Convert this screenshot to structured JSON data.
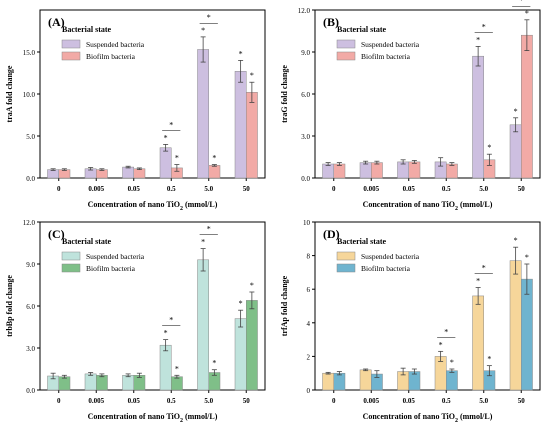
{
  "figure": {
    "x_axis_label": "Concentration of nano TiO",
    "x_axis_sub": "2",
    "x_axis_unit": " (mmol/L)"
  },
  "colors": {
    "suspended_A": "#cdbfe0",
    "biofilm_A": "#f2aaa6",
    "suspended_C": "#bfe3dc",
    "biofilm_C": "#7fbf88",
    "suspended_D": "#f6d69a",
    "biofilm_D": "#6fb4cf"
  },
  "chart_data": [
    {
      "type": "bar",
      "panel": "(A)",
      "ylabel": "traA fold change",
      "categories": [
        "0",
        "0.005",
        "0.05",
        "0.5",
        "5.0",
        "50"
      ],
      "ylim": [
        0,
        20
      ],
      "yticks": [
        "0.0",
        "5.0",
        "10.0",
        "15.0"
      ],
      "legend_title": "Bacterial state",
      "series": [
        {
          "name": "Suspended bacteria",
          "values": [
            1.0,
            1.1,
            1.3,
            3.6,
            15.3,
            12.7
          ],
          "errors": [
            0.1,
            0.15,
            0.1,
            0.4,
            1.5,
            1.3
          ],
          "color_key": "suspended_A"
        },
        {
          "name": "Biofilm bacteria",
          "values": [
            1.0,
            1.0,
            1.1,
            1.2,
            1.5,
            10.2
          ],
          "errors": [
            0.1,
            0.1,
            0.1,
            0.4,
            0.1,
            1.2
          ],
          "color_key": "biofilm_A"
        }
      ],
      "sig": [
        {
          "cat": 3,
          "stars": [
            "*",
            "*",
            "*"
          ],
          "line": "—"
        },
        {
          "cat": 4,
          "stars": [
            "*",
            "*",
            "*"
          ],
          "line": "—"
        },
        {
          "cat": 5,
          "stars": [
            "*",
            "*"
          ]
        }
      ]
    },
    {
      "type": "bar",
      "panel": "(B)",
      "ylabel": "traG fold change",
      "categories": [
        "0",
        "0.005",
        "0.05",
        "0.5",
        "5.0",
        "50"
      ],
      "ylim": [
        0,
        12
      ],
      "yticks": [
        "0.0",
        "3.0",
        "6.0",
        "9.0",
        "12.0"
      ],
      "legend_title": "Bacterial state",
      "series": [
        {
          "name": "Suspended bacteria",
          "values": [
            1.0,
            1.1,
            1.15,
            1.15,
            8.7,
            3.8
          ],
          "errors": [
            0.1,
            0.1,
            0.15,
            0.3,
            0.7,
            0.5
          ],
          "color_key": "suspended_A"
        },
        {
          "name": "Biofilm bacteria",
          "values": [
            1.0,
            1.1,
            1.15,
            1.0,
            1.3,
            10.2
          ],
          "errors": [
            0.1,
            0.1,
            0.1,
            0.1,
            0.4,
            1.1
          ],
          "color_key": "biofilm_A"
        }
      ],
      "sig": [
        {
          "cat": 4,
          "stars": [
            "*",
            "*",
            "*"
          ],
          "line": "—"
        },
        {
          "cat": 5,
          "stars": [
            "*",
            "*",
            "*"
          ],
          "line": "—"
        }
      ]
    },
    {
      "type": "bar",
      "panel": "(C)",
      "ylabel": "trbBp fold change",
      "categories": [
        "0",
        "0.005",
        "0.05",
        "0.5",
        "5.0",
        "50"
      ],
      "ylim": [
        0,
        12
      ],
      "yticks": [
        "0.0",
        "3.0",
        "6.0",
        "9.0",
        "12.0"
      ],
      "legend_title": "Bacterial state",
      "series": [
        {
          "name": "Suspended bacteria",
          "values": [
            1.0,
            1.15,
            1.05,
            3.2,
            9.3,
            5.1
          ],
          "errors": [
            0.2,
            0.1,
            0.1,
            0.4,
            0.8,
            0.6
          ],
          "color_key": "suspended_C"
        },
        {
          "name": "Biofilm bacteria",
          "values": [
            0.95,
            1.05,
            1.05,
            0.95,
            1.25,
            6.4
          ],
          "errors": [
            0.1,
            0.1,
            0.15,
            0.1,
            0.2,
            0.6
          ],
          "color_key": "biofilm_C"
        }
      ],
      "sig": [
        {
          "cat": 3,
          "stars": [
            "*",
            "*",
            "*"
          ],
          "line": "—"
        },
        {
          "cat": 4,
          "stars": [
            "*",
            "*",
            "*"
          ],
          "line": "—"
        },
        {
          "cat": 5,
          "stars": [
            "*",
            "*"
          ]
        }
      ]
    },
    {
      "type": "bar",
      "panel": "(D)",
      "ylabel": "trfAp fold change",
      "categories": [
        "0",
        "0.005",
        "0.05",
        "0.5",
        "5.0",
        "50"
      ],
      "ylim": [
        0,
        10
      ],
      "yticks": [
        "0",
        "2",
        "4",
        "6",
        "8",
        "10"
      ],
      "legend_title": "Bacterial state",
      "series": [
        {
          "name": "Suspended bacteria",
          "values": [
            1.0,
            1.2,
            1.1,
            2.0,
            5.6,
            7.7
          ],
          "errors": [
            0.05,
            0.05,
            0.2,
            0.3,
            0.5,
            0.8
          ],
          "color_key": "suspended_D"
        },
        {
          "name": "Biofilm bacteria",
          "values": [
            1.0,
            0.95,
            1.1,
            1.15,
            1.15,
            6.6
          ],
          "errors": [
            0.1,
            0.2,
            0.15,
            0.1,
            0.3,
            0.9
          ],
          "color_key": "biofilm_D"
        }
      ],
      "sig": [
        {
          "cat": 3,
          "stars": [
            "*",
            "*",
            "*"
          ],
          "line": "—"
        },
        {
          "cat": 4,
          "stars": [
            "*",
            "*",
            "*"
          ],
          "line": "—"
        },
        {
          "cat": 5,
          "stars": [
            "*",
            "*"
          ]
        }
      ]
    }
  ]
}
